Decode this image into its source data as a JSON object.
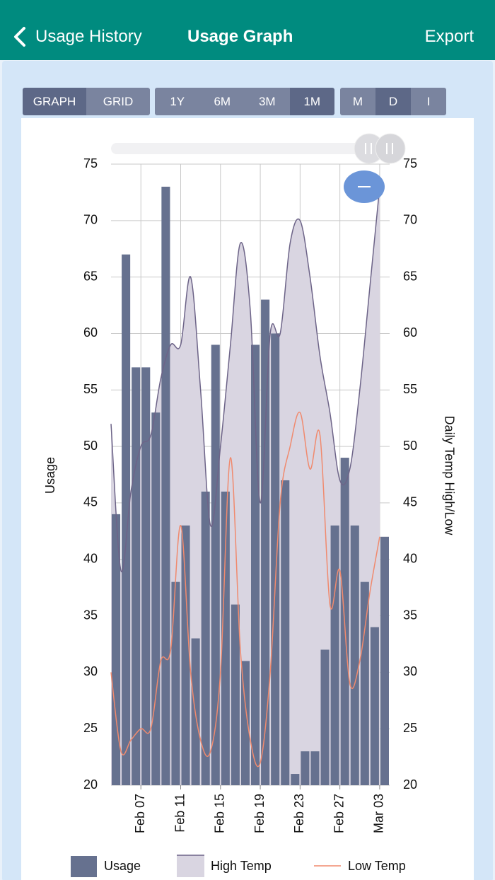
{
  "header": {
    "back": "Usage History",
    "title": "Usage Graph",
    "action": "Export"
  },
  "toolbar": [
    {
      "options": [
        "GRAPH",
        "GRID"
      ],
      "selected": 0
    },
    {
      "options": [
        "1Y",
        "6M",
        "3M",
        "1M"
      ],
      "selected": 3
    },
    {
      "options": [
        "M",
        "D",
        "I"
      ],
      "selected": 1
    }
  ],
  "chart_data": {
    "type": "bar",
    "categories": [
      null,
      null,
      null,
      "Feb 07",
      null,
      null,
      null,
      "Feb 11",
      null,
      null,
      null,
      "Feb 15",
      null,
      null,
      null,
      "Feb 19",
      null,
      null,
      null,
      "Feb 23",
      null,
      null,
      null,
      "Feb 27",
      null,
      null,
      null,
      "Mar 03"
    ],
    "ylabel": "Usage",
    "y2label": "Daily Temp High/Low",
    "ylim": [
      20,
      75
    ],
    "yticks": [
      20,
      25,
      30,
      35,
      40,
      45,
      50,
      55,
      60,
      65,
      70,
      75
    ],
    "y2lim": [
      20,
      75
    ],
    "y2ticks": [
      20,
      25,
      30,
      35,
      40,
      45,
      50,
      55,
      60,
      65,
      70,
      75
    ],
    "grid": true,
    "series": [
      {
        "name": "Usage",
        "type": "bar",
        "color": "#66718f",
        "values": [
          44,
          67,
          57,
          57,
          53,
          73,
          38,
          43,
          33,
          46,
          59,
          46,
          36,
          31,
          59,
          63,
          60,
          47,
          21,
          23,
          23,
          32,
          43,
          49,
          43,
          38,
          34,
          42
        ]
      },
      {
        "name": "High Temp",
        "type": "area",
        "axis": "y2",
        "color": "#6d6488",
        "fill": "#d9d5e1",
        "values": [
          52,
          39,
          46,
          50,
          51,
          56,
          59,
          59,
          65,
          55,
          43,
          50,
          59,
          68,
          62,
          45,
          60,
          60,
          68,
          70,
          65,
          58,
          53,
          47,
          48,
          55,
          64,
          73
        ]
      },
      {
        "name": "Low Temp",
        "type": "line",
        "axis": "y2",
        "color": "#f08a6e",
        "values": [
          30,
          23,
          24,
          25,
          25,
          31,
          32,
          43,
          30,
          24,
          23,
          30,
          49,
          32,
          24,
          22,
          30,
          45,
          50,
          53,
          48,
          51,
          36,
          39,
          29,
          31,
          37,
          42
        ]
      }
    ]
  }
}
